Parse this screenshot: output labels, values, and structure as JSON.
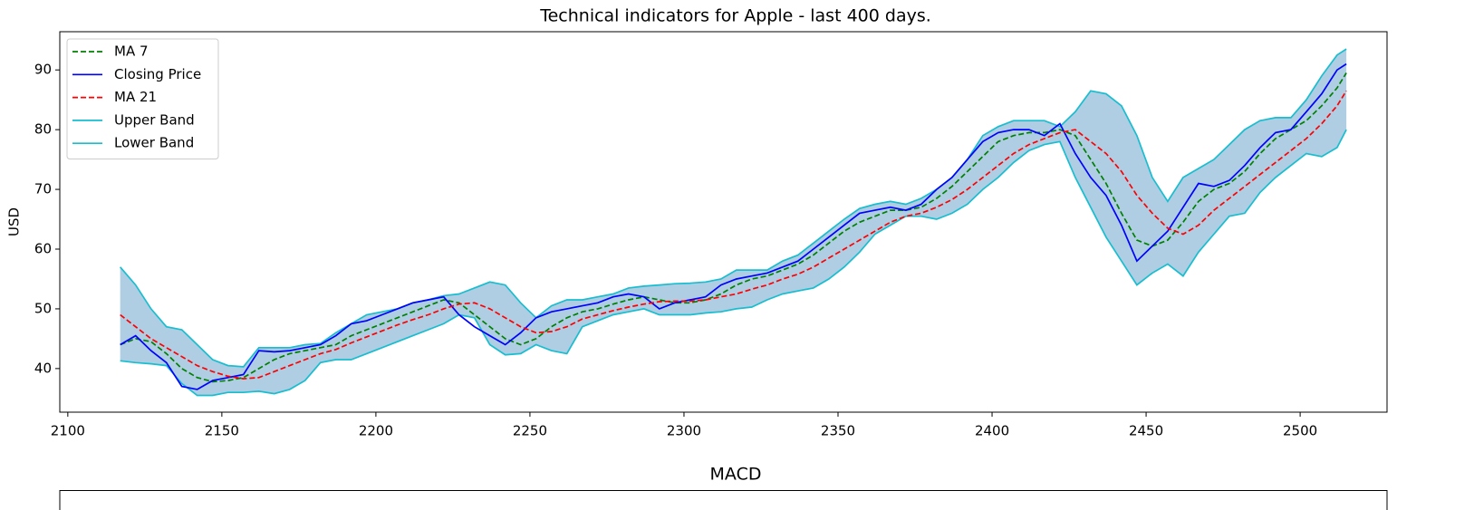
{
  "chart_data": [
    {
      "type": "line",
      "title": "Technical indicators for Apple - last 400 days.",
      "ylabel": "USD",
      "x": [
        2117,
        2122,
        2127,
        2132,
        2137,
        2142,
        2147,
        2152,
        2157,
        2162,
        2167,
        2172,
        2177,
        2182,
        2187,
        2192,
        2197,
        2202,
        2207,
        2212,
        2217,
        2222,
        2227,
        2232,
        2237,
        2242,
        2247,
        2252,
        2257,
        2262,
        2267,
        2272,
        2277,
        2282,
        2287,
        2292,
        2297,
        2302,
        2307,
        2312,
        2317,
        2322,
        2327,
        2332,
        2337,
        2342,
        2347,
        2352,
        2357,
        2362,
        2367,
        2372,
        2377,
        2382,
        2387,
        2392,
        2397,
        2402,
        2407,
        2412,
        2417,
        2422,
        2427,
        2432,
        2437,
        2442,
        2447,
        2452,
        2457,
        2462,
        2467,
        2472,
        2477,
        2482,
        2487,
        2492,
        2497,
        2502,
        2507,
        2512,
        2515
      ],
      "series": [
        {
          "name": "MA 7",
          "color": "#008000",
          "dash": true,
          "values": [
            44,
            45,
            44.5,
            42.5,
            40,
            38.5,
            37.8,
            38,
            38.5,
            40,
            41.5,
            42.5,
            43,
            43.5,
            44,
            45.5,
            46.5,
            47.5,
            48.5,
            49.5,
            50.5,
            51.5,
            51,
            49,
            47,
            45,
            44,
            45,
            47,
            48.5,
            49.5,
            50,
            50.8,
            51.5,
            52,
            51.5,
            51,
            51,
            51.5,
            52.5,
            54,
            55,
            55.5,
            56.5,
            57.5,
            59,
            61,
            63,
            64.5,
            65.5,
            66.5,
            66.5,
            67,
            68.5,
            70.5,
            73,
            75.5,
            78,
            79,
            79.5,
            79.5,
            80,
            79,
            75,
            71,
            66,
            61.5,
            60.5,
            61.5,
            64.5,
            68,
            70,
            71,
            73,
            76,
            78.5,
            80,
            81.5,
            84,
            87,
            89.5
          ]
        },
        {
          "name": "Closing Price",
          "color": "#0000ff",
          "dash": false,
          "values": [
            44,
            45.5,
            43,
            41,
            37,
            36.5,
            38,
            38.5,
            39,
            43,
            42.8,
            43,
            43.5,
            44,
            45.5,
            47.5,
            48,
            49,
            50,
            51,
            51.5,
            52,
            49,
            47,
            45.5,
            44,
            46,
            48.5,
            49.5,
            50,
            50.5,
            51,
            52,
            52.5,
            52,
            50,
            51,
            51.5,
            52,
            54,
            55,
            55.5,
            56,
            57,
            58,
            60,
            62,
            64,
            66,
            66.5,
            67,
            66.5,
            67.5,
            70,
            72,
            75,
            78,
            79.5,
            80,
            80,
            79,
            81,
            76,
            72,
            69,
            64,
            58,
            60.5,
            63,
            67,
            71,
            70.5,
            71.5,
            74,
            77,
            79.5,
            80,
            83,
            86,
            90,
            91
          ]
        },
        {
          "name": "MA 21",
          "color": "#ff0000",
          "dash": true,
          "values": [
            49,
            47,
            45,
            43.5,
            42,
            40.5,
            39.5,
            38.7,
            38.3,
            38.5,
            39.5,
            40.5,
            41.5,
            42.5,
            43.2,
            44.3,
            45.3,
            46.3,
            47.3,
            48.2,
            49,
            50,
            50.8,
            51,
            50,
            48.5,
            47,
            46,
            46.2,
            47,
            48.3,
            49,
            49.7,
            50.3,
            50.8,
            51.2,
            51.3,
            51.3,
            51.5,
            52,
            52.5,
            53.3,
            54,
            55,
            55.8,
            57,
            58.5,
            60,
            61.5,
            63,
            64.5,
            65.5,
            66,
            67,
            68.3,
            70,
            72,
            74,
            76,
            77.5,
            78.5,
            79.5,
            80,
            78,
            76,
            73,
            69,
            66,
            63.5,
            62.5,
            64,
            66.5,
            68.5,
            70.5,
            72.5,
            74.5,
            76.5,
            78.5,
            81,
            84,
            86.5
          ]
        },
        {
          "name": "Upper Band",
          "color": "#17becf",
          "dash": false,
          "values": [
            57,
            54,
            50,
            47,
            46.5,
            44,
            41.5,
            40.5,
            40.3,
            43.5,
            43.5,
            43.5,
            44,
            44.2,
            46,
            47.5,
            49,
            49.5,
            50,
            51,
            51.5,
            52.2,
            52.5,
            53.5,
            54.5,
            54,
            51,
            48.5,
            50.5,
            51.5,
            51.5,
            52,
            52.5,
            53.5,
            53.8,
            54,
            54.2,
            54.3,
            54.5,
            55,
            56.5,
            56.5,
            56.5,
            58,
            59,
            61,
            63,
            65,
            66.8,
            67.5,
            68,
            67.5,
            68.5,
            70,
            72,
            75,
            79,
            80.5,
            81.5,
            81.5,
            81.5,
            80.5,
            83,
            86.5,
            86,
            84,
            79,
            72,
            68,
            72,
            73.5,
            75,
            77.5,
            80,
            81.5,
            82,
            82,
            85,
            89,
            92.5,
            93.5
          ]
        },
        {
          "name": "Lower Band",
          "color": "#17becf",
          "dash": false,
          "values": [
            41.3,
            41,
            40.8,
            40.5,
            37.5,
            35.5,
            35.5,
            36,
            36,
            36.2,
            35.8,
            36.5,
            38,
            41,
            41.5,
            41.5,
            42.5,
            43.5,
            44.5,
            45.5,
            46.5,
            47.5,
            49,
            48.5,
            44,
            42.3,
            42.5,
            44,
            43,
            42.5,
            47,
            48,
            49,
            49.5,
            50,
            49,
            49,
            49,
            49.3,
            49.5,
            50,
            50.3,
            51.5,
            52.5,
            53,
            53.5,
            55,
            57,
            59.5,
            62.5,
            64,
            65.5,
            65.5,
            65,
            66,
            67.5,
            70,
            72,
            74.5,
            76.5,
            77.5,
            78,
            72,
            67,
            62,
            58,
            54,
            56,
            57.5,
            55.5,
            59.5,
            62.5,
            65.5,
            66,
            69.5,
            72,
            74,
            76,
            75.5,
            77,
            80
          ]
        }
      ],
      "band_fill": "#afcde3",
      "xlim": [
        2097.4,
        2528.2
      ],
      "xticks": [
        2100,
        2150,
        2200,
        2250,
        2300,
        2350,
        2400,
        2450,
        2500
      ],
      "ylim": [
        32.7,
        96.4
      ],
      "yticks": [
        40,
        50,
        60,
        70,
        80,
        90
      ],
      "legend": "upper left"
    },
    {
      "type": "line",
      "title": "MACD"
    }
  ]
}
